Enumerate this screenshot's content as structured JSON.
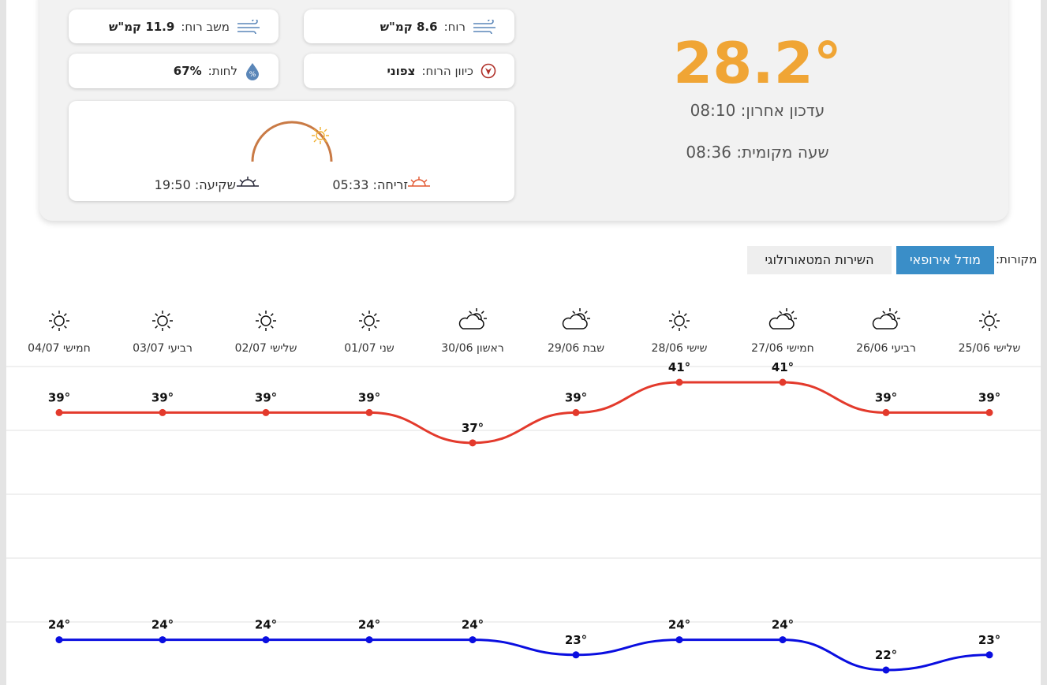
{
  "current": {
    "temperature": "28.2°",
    "last_update": "עדכון אחרון: 08:10",
    "local_time": "שעה מקומית: 08:36"
  },
  "stats": {
    "wind": {
      "label": "רוח:",
      "value": "8.6 קמ\"ש"
    },
    "gust": {
      "label": "משב רוח:",
      "value": "11.9 קמ\"ש"
    },
    "direction": {
      "label": "כיוון הרוח:",
      "value": "צפוני"
    },
    "humidity": {
      "label": "לחות:",
      "value": "67%"
    }
  },
  "sun": {
    "sunrise": "זריחה: 05:33",
    "sunset": "שקיעה: 19:50"
  },
  "sources": {
    "label": "מקורות:",
    "buttons": [
      "מודל אירופאי",
      "השירות המטאורולוגי"
    ]
  },
  "chart_data": {
    "type": "line",
    "categories": [
      "שלישי 25/06",
      "רביעי 26/06",
      "חמישי 27/06",
      "שישי 28/06",
      "שבת 29/06",
      "ראשון 30/06",
      "שני 01/07",
      "שלישי 02/07",
      "רביעי 03/07",
      "חמישי 04/07"
    ],
    "icons": [
      "sun",
      "partly-cloudy",
      "partly-cloudy",
      "sun",
      "partly-cloudy",
      "partly-cloudy",
      "sun",
      "sun",
      "sun",
      "sun"
    ],
    "series": [
      {
        "color": "#e33a2c",
        "values": [
          39,
          39,
          41,
          41,
          39,
          37,
          39,
          39,
          39,
          39
        ],
        "value_labels": [
          "39°",
          "39°",
          "41°",
          "41°",
          "39°",
          "37°",
          "39°",
          "39°",
          "39°",
          "39°"
        ]
      },
      {
        "color": "#0a0ee0",
        "values": [
          23,
          22,
          24,
          24,
          23,
          24,
          24,
          24,
          24,
          24
        ],
        "value_labels": [
          "23°",
          "22°",
          "24°",
          "24°",
          "23°",
          "24°",
          "24°",
          "24°",
          "24°",
          "24°"
        ]
      }
    ],
    "grid": true
  }
}
